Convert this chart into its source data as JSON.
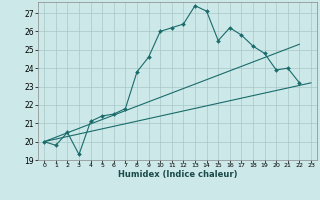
{
  "title": "",
  "xlabel": "Humidex (Indice chaleur)",
  "bg_color": "#cce8e8",
  "grid_color": "#aac8c8",
  "line_color": "#1a6b6b",
  "xlim": [
    -0.5,
    23.5
  ],
  "ylim": [
    19,
    27.6
  ],
  "yticks": [
    19,
    20,
    21,
    22,
    23,
    24,
    25,
    26,
    27
  ],
  "xticks": [
    0,
    1,
    2,
    3,
    4,
    5,
    6,
    7,
    8,
    9,
    10,
    11,
    12,
    13,
    14,
    15,
    16,
    17,
    18,
    19,
    20,
    21,
    22,
    23
  ],
  "line1_x": [
    0,
    1,
    2,
    3,
    4,
    5,
    6,
    7,
    8,
    9,
    10,
    11,
    12,
    13,
    14,
    15,
    16,
    17,
    18,
    19,
    20,
    21,
    22
  ],
  "line1_y": [
    20.0,
    19.8,
    20.5,
    19.3,
    21.1,
    21.4,
    21.5,
    21.8,
    23.8,
    24.6,
    26.0,
    26.2,
    26.4,
    27.4,
    27.1,
    25.5,
    26.2,
    25.8,
    25.2,
    24.8,
    23.9,
    24.0,
    23.2
  ],
  "line2_x": [
    0,
    23
  ],
  "line2_y": [
    20.0,
    23.2
  ],
  "line3_x": [
    0,
    22
  ],
  "line3_y": [
    20.0,
    25.3
  ]
}
